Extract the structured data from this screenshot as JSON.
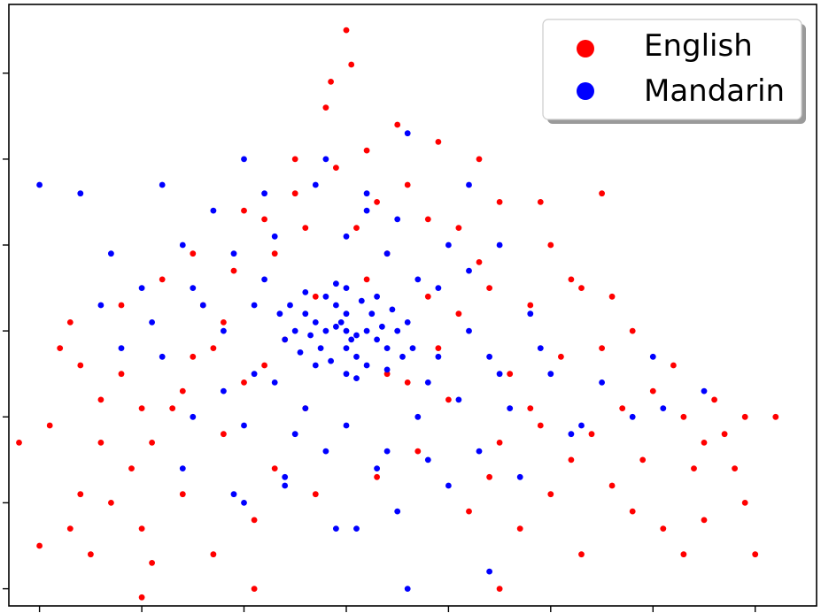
{
  "chart_data": {
    "type": "scatter",
    "title": "",
    "xlabel": "",
    "ylabel": "",
    "xlim": [
      -3.3,
      4.6
    ],
    "ylim": [
      -3.2,
      3.8
    ],
    "x_ticks": [
      -3,
      -2,
      -1,
      0,
      1,
      2,
      3,
      4
    ],
    "y_ticks": [
      -3,
      -2,
      -1,
      0,
      1,
      2,
      3
    ],
    "tick_labels_visible": false,
    "grid": false,
    "legend": {
      "position": "top-right",
      "frame": true,
      "shadow": true
    },
    "series": [
      {
        "name": "English",
        "color": "#ff0000",
        "points": [
          [
            -3.2,
            -1.3
          ],
          [
            -2.9,
            -1.1
          ],
          [
            -3.0,
            -2.5
          ],
          [
            -2.6,
            -1.9
          ],
          [
            -2.5,
            -2.6
          ],
          [
            -2.8,
            -0.2
          ],
          [
            -2.7,
            0.1
          ],
          [
            -2.4,
            -1.3
          ],
          [
            -2.3,
            -2.0
          ],
          [
            -2.2,
            -0.5
          ],
          [
            -2.1,
            -1.6
          ],
          [
            -2.0,
            -2.3
          ],
          [
            -1.9,
            -2.7
          ],
          [
            -1.8,
            0.6
          ],
          [
            -1.7,
            -0.9
          ],
          [
            -1.6,
            -1.9
          ],
          [
            -1.5,
            -0.3
          ],
          [
            -1.4,
            0.3
          ],
          [
            -1.3,
            -2.6
          ],
          [
            -1.2,
            -1.2
          ],
          [
            -1.1,
            0.7
          ],
          [
            -1.0,
            -0.6
          ],
          [
            -0.9,
            -2.2
          ],
          [
            -0.8,
            1.3
          ],
          [
            -0.7,
            -1.6
          ],
          [
            -0.6,
            -0.1
          ],
          [
            -0.5,
            2.0
          ],
          [
            -0.4,
            1.2
          ],
          [
            -0.3,
            -1.9
          ],
          [
            -0.2,
            2.6
          ],
          [
            -0.1,
            1.9
          ],
          [
            0.0,
            3.5
          ],
          [
            0.05,
            3.1
          ],
          [
            -0.15,
            2.9
          ],
          [
            0.2,
            2.1
          ],
          [
            0.3,
            1.5
          ],
          [
            0.4,
            0.9
          ],
          [
            0.5,
            2.4
          ],
          [
            0.6,
            1.7
          ],
          [
            0.7,
            -1.4
          ],
          [
            0.8,
            0.4
          ],
          [
            0.9,
            2.2
          ],
          [
            1.0,
            -0.8
          ],
          [
            1.1,
            1.2
          ],
          [
            1.2,
            -2.1
          ],
          [
            1.3,
            0.8
          ],
          [
            1.4,
            -1.7
          ],
          [
            1.5,
            1.5
          ],
          [
            1.6,
            -0.5
          ],
          [
            1.7,
            -2.3
          ],
          [
            1.8,
            0.3
          ],
          [
            1.9,
            -1.1
          ],
          [
            2.0,
            1.0
          ],
          [
            2.1,
            -0.3
          ],
          [
            2.2,
            -1.5
          ],
          [
            2.3,
            0.5
          ],
          [
            2.4,
            -1.2
          ],
          [
            2.5,
            -0.2
          ],
          [
            2.6,
            -1.8
          ],
          [
            2.7,
            -0.9
          ],
          [
            2.8,
            0.0
          ],
          [
            2.9,
            -1.5
          ],
          [
            3.0,
            -0.7
          ],
          [
            3.1,
            -2.3
          ],
          [
            3.2,
            -0.4
          ],
          [
            3.3,
            -1.0
          ],
          [
            3.4,
            -1.6
          ],
          [
            3.5,
            -1.3
          ],
          [
            3.6,
            -0.8
          ],
          [
            3.7,
            -1.2
          ],
          [
            3.8,
            -1.6
          ],
          [
            3.9,
            -1.0
          ],
          [
            4.0,
            -2.6
          ],
          [
            4.2,
            -1.0
          ],
          [
            2.5,
            1.6
          ],
          [
            1.9,
            1.5
          ],
          [
            -2.4,
            -0.8
          ],
          [
            -1.9,
            -1.3
          ],
          [
            -1.3,
            -0.2
          ],
          [
            -0.7,
            0.9
          ],
          [
            -0.4,
            -0.9
          ],
          [
            0.3,
            -1.7
          ],
          [
            0.6,
            -0.6
          ],
          [
            1.1,
            0.2
          ],
          [
            1.5,
            -1.3
          ],
          [
            -2.6,
            -0.4
          ],
          [
            -2.0,
            -0.9
          ],
          [
            -1.5,
            0.9
          ],
          [
            -1.0,
            1.4
          ],
          [
            -0.3,
            0.4
          ],
          [
            0.2,
            0.6
          ],
          [
            0.8,
            1.3
          ],
          [
            1.3,
            2.0
          ],
          [
            2.2,
            0.6
          ],
          [
            2.6,
            0.4
          ],
          [
            -2.2,
            0.3
          ],
          [
            -1.6,
            -0.7
          ],
          [
            -1.2,
            0.1
          ],
          [
            -0.8,
            -0.4
          ],
          [
            -0.5,
            1.6
          ],
          [
            0.1,
            1.2
          ],
          [
            0.4,
            -0.5
          ],
          [
            0.9,
            -0.2
          ],
          [
            1.4,
            0.5
          ],
          [
            1.8,
            -0.9
          ],
          [
            3.5,
            -2.2
          ],
          [
            3.9,
            -2.0
          ],
          [
            2.8,
            -2.1
          ],
          [
            2.3,
            -2.6
          ],
          [
            1.5,
            -3.0
          ],
          [
            -0.9,
            -3.0
          ],
          [
            -2.0,
            -3.1
          ],
          [
            -2.7,
            -2.3
          ],
          [
            3.3,
            -2.6
          ],
          [
            2.0,
            -1.9
          ]
        ]
      },
      {
        "name": "Mandarin",
        "color": "#0000ff",
        "points": [
          [
            0.0,
            0.0
          ],
          [
            -0.1,
            0.05
          ],
          [
            0.1,
            -0.05
          ],
          [
            -0.05,
            0.1
          ],
          [
            0.05,
            -0.1
          ],
          [
            -0.2,
            0.0
          ],
          [
            0.2,
            0.0
          ],
          [
            0.0,
            0.2
          ],
          [
            0.0,
            -0.2
          ],
          [
            -0.3,
            0.1
          ],
          [
            0.3,
            -0.1
          ],
          [
            -0.1,
            0.3
          ],
          [
            0.1,
            -0.3
          ],
          [
            -0.25,
            -0.2
          ],
          [
            0.25,
            0.2
          ],
          [
            -0.35,
            -0.05
          ],
          [
            0.35,
            0.05
          ],
          [
            -0.15,
            -0.35
          ],
          [
            0.15,
            0.35
          ],
          [
            -0.4,
            0.2
          ],
          [
            0.4,
            -0.2
          ],
          [
            -0.2,
            0.4
          ],
          [
            0.2,
            -0.4
          ],
          [
            -0.45,
            -0.25
          ],
          [
            0.45,
            0.25
          ],
          [
            -0.5,
            0.0
          ],
          [
            0.5,
            0.0
          ],
          [
            0.0,
            0.5
          ],
          [
            0.0,
            -0.5
          ],
          [
            -0.3,
            -0.4
          ],
          [
            0.3,
            0.4
          ],
          [
            -0.55,
            0.3
          ],
          [
            0.55,
            -0.3
          ],
          [
            -0.1,
            0.55
          ],
          [
            0.1,
            -0.55
          ],
          [
            -0.6,
            -0.1
          ],
          [
            0.6,
            0.1
          ],
          [
            -0.4,
            0.45
          ],
          [
            0.4,
            -0.45
          ],
          [
            -0.65,
            0.2
          ],
          [
            0.65,
            -0.2
          ],
          [
            -0.8,
            0.6
          ],
          [
            0.8,
            -0.6
          ],
          [
            -0.9,
            -0.5
          ],
          [
            0.9,
            0.5
          ],
          [
            -1.1,
            0.9
          ],
          [
            1.1,
            -0.8
          ],
          [
            -1.2,
            -0.7
          ],
          [
            1.2,
            0.7
          ],
          [
            -0.7,
            1.1
          ],
          [
            0.7,
            -1.0
          ],
          [
            -1.4,
            0.3
          ],
          [
            1.4,
            -0.3
          ],
          [
            -0.5,
            -1.2
          ],
          [
            0.5,
            1.3
          ],
          [
            -1.6,
            1.0
          ],
          [
            1.6,
            -0.9
          ],
          [
            -1.0,
            -1.1
          ],
          [
            1.0,
            1.0
          ],
          [
            -1.8,
            -0.3
          ],
          [
            1.8,
            0.2
          ],
          [
            -0.3,
            1.7
          ],
          [
            0.3,
            -1.6
          ],
          [
            -1.5,
            -1.0
          ],
          [
            1.5,
            1.0
          ],
          [
            -2.0,
            0.5
          ],
          [
            2.0,
            -0.5
          ],
          [
            -0.8,
            1.6
          ],
          [
            0.8,
            -1.5
          ],
          [
            -1.3,
            1.4
          ],
          [
            1.3,
            -1.4
          ],
          [
            -2.2,
            -0.2
          ],
          [
            2.2,
            -1.2
          ],
          [
            -0.2,
            2.0
          ],
          [
            0.6,
            2.3
          ],
          [
            1.7,
            -1.7
          ],
          [
            -1.1,
            -1.9
          ],
          [
            2.5,
            -0.6
          ],
          [
            -2.3,
            0.9
          ],
          [
            2.8,
            -1.0
          ],
          [
            0.1,
            -2.3
          ],
          [
            -1.6,
            -1.6
          ],
          [
            3.5,
            -0.7
          ],
          [
            3.0,
            -0.3
          ],
          [
            -1.8,
            1.7
          ],
          [
            0.5,
            -2.1
          ],
          [
            -1.0,
            2.0
          ],
          [
            1.9,
            -0.2
          ],
          [
            1.2,
            1.7
          ],
          [
            -0.6,
            -1.8
          ],
          [
            -3.0,
            1.7
          ],
          [
            -2.6,
            1.6
          ],
          [
            -1.0,
            -2.0
          ],
          [
            -0.1,
            -2.3
          ],
          [
            1.4,
            -2.8
          ],
          [
            0.6,
            -3.0
          ],
          [
            -0.6,
            -1.7
          ],
          [
            1.0,
            -1.8
          ],
          [
            2.3,
            -1.1
          ],
          [
            3.1,
            -0.9
          ],
          [
            -1.9,
            0.1
          ],
          [
            -2.4,
            0.3
          ],
          [
            0.2,
            1.6
          ],
          [
            -0.4,
            -0.9
          ],
          [
            0.4,
            0.9
          ],
          [
            -0.9,
            0.3
          ],
          [
            0.9,
            -0.3
          ],
          [
            -0.7,
            -0.6
          ],
          [
            0.7,
            0.6
          ],
          [
            -1.2,
            0.0
          ],
          [
            1.2,
            0.0
          ],
          [
            0.0,
            1.1
          ],
          [
            0.0,
            -1.1
          ],
          [
            -0.2,
            -1.4
          ],
          [
            0.2,
            1.4
          ],
          [
            -1.5,
            0.5
          ],
          [
            1.5,
            -0.5
          ],
          [
            0.4,
            -1.4
          ]
        ]
      }
    ]
  }
}
